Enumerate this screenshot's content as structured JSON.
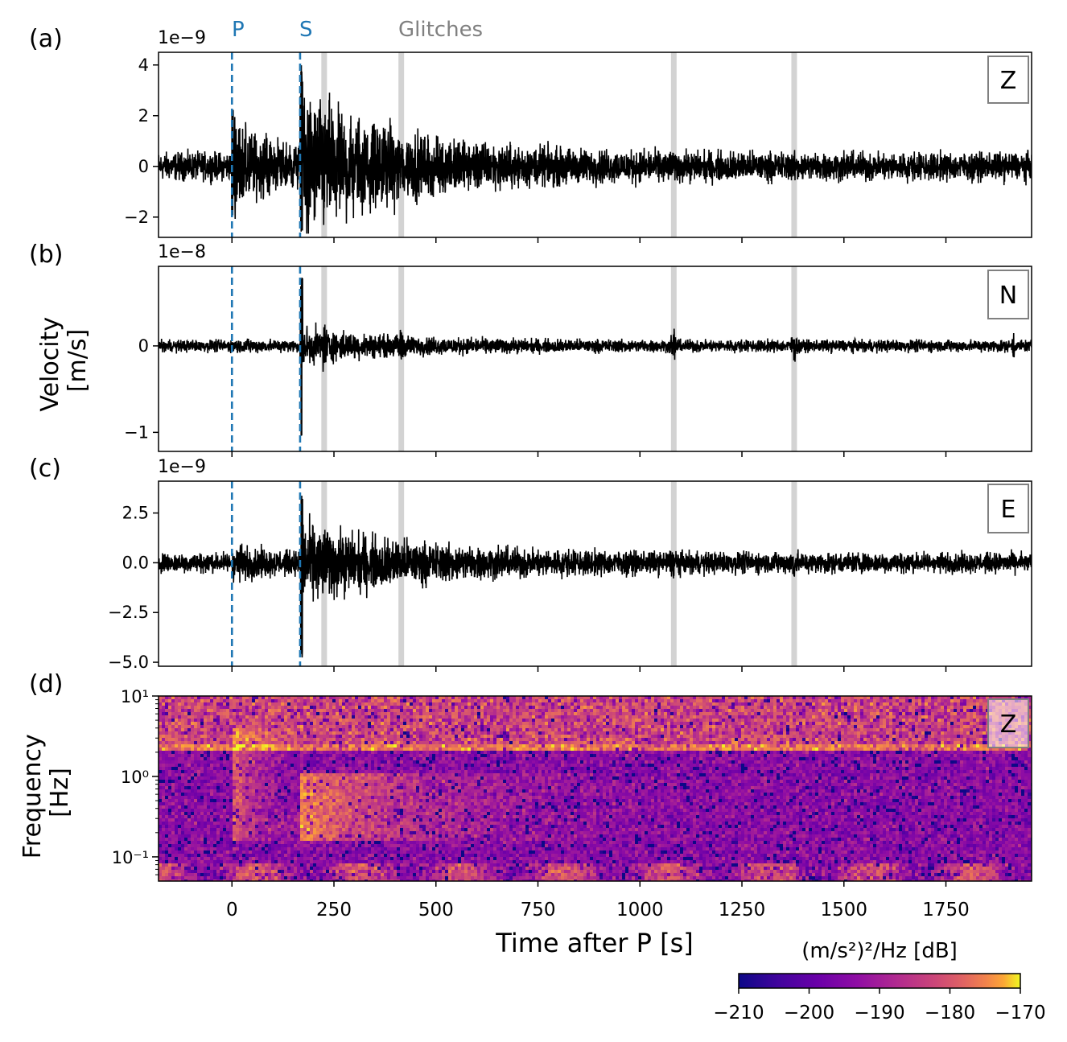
{
  "chart_data": {
    "type": "multi-panel seismogram with spectrogram",
    "x_axis": {
      "label": "Time after P [s]",
      "range": [
        -180,
        1960
      ],
      "ticks": [
        0,
        250,
        500,
        750,
        1000,
        1250,
        1500,
        1750
      ],
      "tick_labels": [
        "0",
        "250",
        "500",
        "750",
        "1000",
        "1250",
        "1500",
        "1750"
      ]
    },
    "phases": [
      {
        "name": "P",
        "time": 0
      },
      {
        "name": "S",
        "time": 167
      }
    ],
    "glitch_label": "Glitches",
    "glitches": [
      226,
      415,
      1083,
      1378
    ],
    "shared_ylabel": "Velocity\n[m/s]",
    "panels": [
      {
        "letter": "(a)",
        "component": "Z",
        "exponent": "1e−9",
        "ylim": [
          -2.8,
          4.5
        ],
        "yticks": [
          -2,
          0,
          2,
          4
        ],
        "ytick_labels": [
          "−2",
          "0",
          "2",
          "4"
        ],
        "noise_amp": 0.55,
        "peak_max": 4.1,
        "peak_min": -2.6
      },
      {
        "letter": "(b)",
        "component": "N",
        "exponent": "1e−8",
        "ylim": [
          -1.22,
          0.92
        ],
        "yticks": [
          -1,
          0
        ],
        "ytick_labels": [
          "−1",
          "0"
        ],
        "noise_amp": 0.07,
        "peak_max": 0.82,
        "peak_min": -1.15
      },
      {
        "letter": "(c)",
        "component": "E",
        "exponent": "1e−9",
        "ylim": [
          -5.2,
          4.1
        ],
        "yticks": [
          -5.0,
          -2.5,
          0.0,
          2.5
        ],
        "ytick_labels": [
          "−5.0",
          "−2.5",
          "0.0",
          "2.5"
        ],
        "noise_amp": 0.5,
        "peak_max": 3.6,
        "peak_min": -5.0
      }
    ],
    "spectrogram": {
      "letter": "(d)",
      "component": "Z",
      "ylabel": "Frequency\n[Hz]",
      "yscale": "log",
      "ylim_hz": [
        0.05,
        10
      ],
      "yticks": [
        0.1,
        1,
        10
      ],
      "ytick_labels": [
        "10⁻¹",
        "10⁰",
        "10¹"
      ],
      "colormap": "plasma"
    },
    "colorbar": {
      "label": "(m/s²)²/Hz [dB]",
      "range_db": [
        -210,
        -170
      ],
      "ticks": [
        -210,
        -200,
        -190,
        -180,
        -170
      ],
      "tick_labels": [
        "−210",
        "−200",
        "−190",
        "−180",
        "−170"
      ]
    },
    "colors": {
      "phase_line": "#1f77b4",
      "trace": "#000000",
      "glitch_band": "#d3d3d3",
      "glitch_text": "#808080"
    }
  }
}
